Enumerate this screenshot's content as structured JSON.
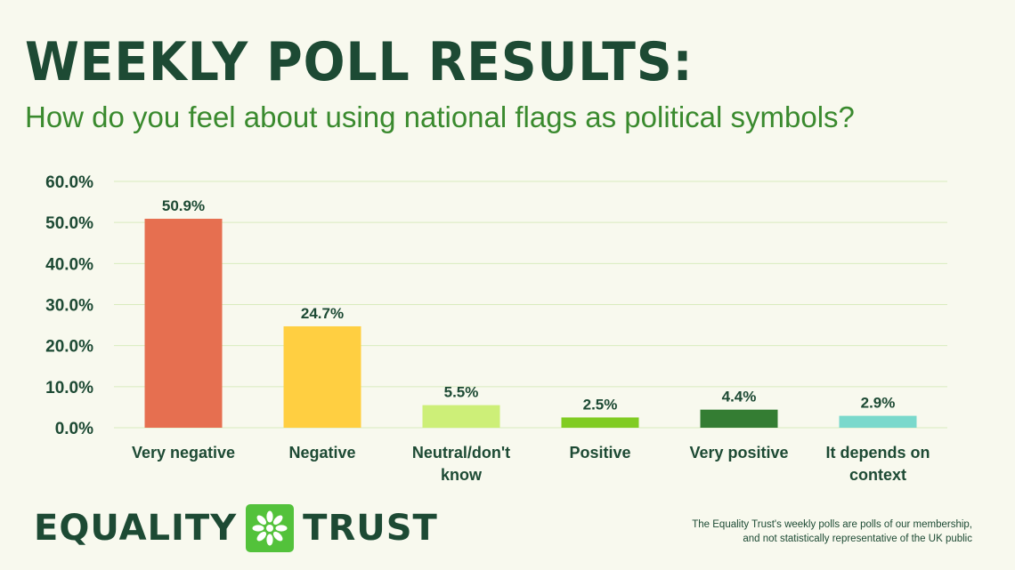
{
  "header": {
    "title": "WEEKLY POLL RESULTS:",
    "subtitle": "How do you feel about using national flags as political symbols?"
  },
  "chart_data": {
    "type": "bar",
    "categories": [
      "Very negative",
      "Negative",
      "Neutral/don't know",
      "Positive",
      "Very positive",
      "It depends on context"
    ],
    "values": [
      50.9,
      24.7,
      5.5,
      2.5,
      4.4,
      2.9
    ],
    "data_labels": [
      "50.9%",
      "24.7%",
      "5.5%",
      "2.5%",
      "4.4%",
      "2.9%"
    ],
    "bar_colors": [
      "#e66f50",
      "#ffcf41",
      "#cdef78",
      "#80cc22",
      "#347d33",
      "#7ad9cc"
    ],
    "ylim": [
      0,
      60
    ],
    "yticks": [
      "0.0%",
      "10.0%",
      "20.0%",
      "30.0%",
      "40.0%",
      "50.0%",
      "60.0%"
    ],
    "grid": true,
    "legend": "none"
  },
  "branding": {
    "logo_left": "EQUALITY",
    "logo_right": "TRUST",
    "logo_icon": "asterisk-flower-icon",
    "primary_color": "#1d4a34",
    "accent_color": "#3a8a2e"
  },
  "footnote": {
    "line1": "The Equality Trust's weekly polls are polls of our membership,",
    "line2": "and not statistically representative of the UK public"
  }
}
